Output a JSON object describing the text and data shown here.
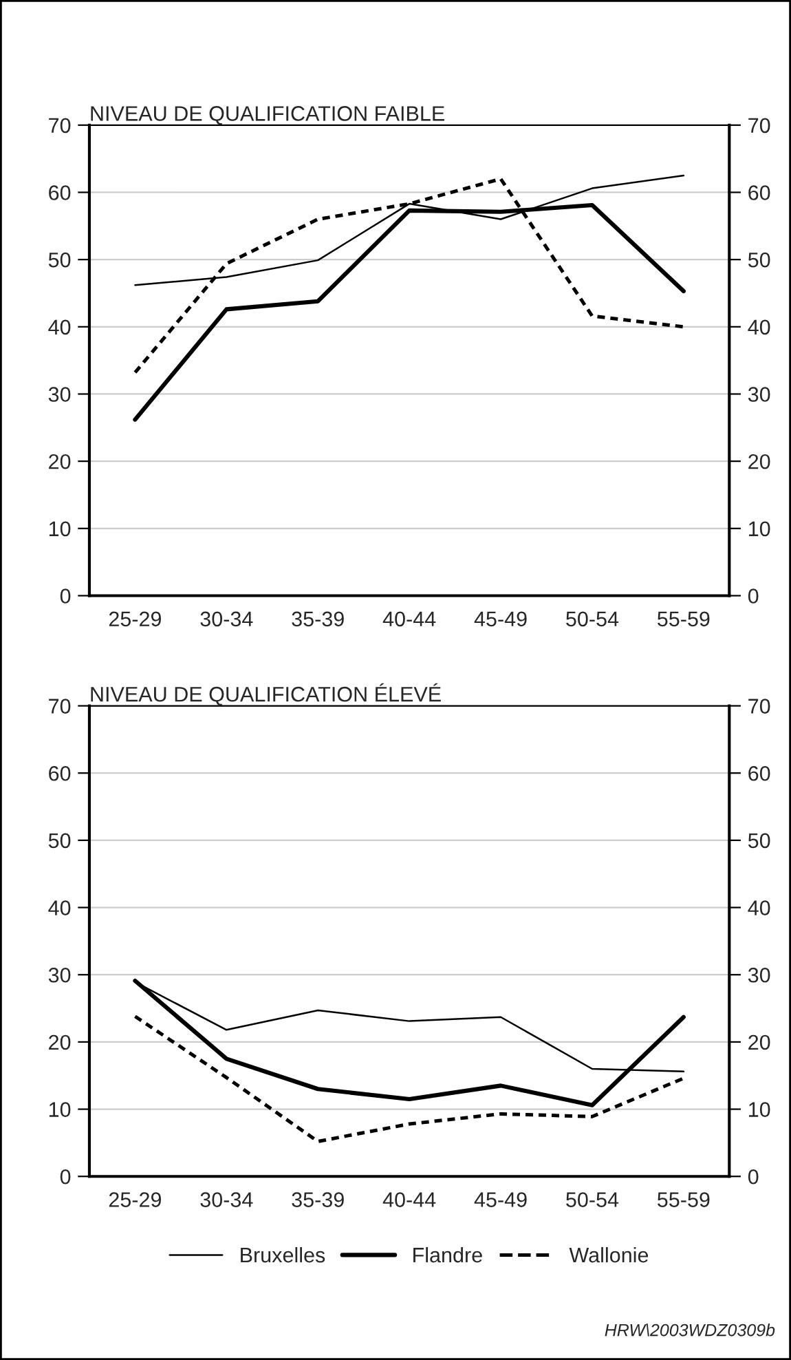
{
  "chart_data": [
    {
      "type": "line",
      "title": "NIVEAU DE QUALIFICATION FAIBLE",
      "categories": [
        "25-29",
        "30-34",
        "35-39",
        "40-44",
        "45-49",
        "50-54",
        "55-59"
      ],
      "series": [
        {
          "color": "#000000",
          "line_style": "solid",
          "values": [
            46.2,
            47.4,
            49.9,
            58.3,
            56.0,
            60.6,
            62.5
          ]
        },
        {
          "color": "#000000",
          "line_style": "solid",
          "values": [
            26.2,
            42.6,
            43.8,
            57.3,
            57.1,
            58.1,
            45.3
          ]
        },
        {
          "color": "#000000",
          "line_style": "dashed",
          "values": [
            33.2,
            49.4,
            56.0,
            58.3,
            62.0,
            41.6,
            40.0
          ]
        }
      ],
      "ylim": [
        0,
        70
      ],
      "yticks": [
        0,
        10,
        20,
        30,
        40,
        50,
        60,
        70
      ],
      "y2lim": [
        0,
        70
      ],
      "y2ticks": [
        0,
        10,
        20,
        30,
        40,
        50,
        60,
        70
      ],
      "grid": "y",
      "legend": false
    },
    {
      "type": "line",
      "title": "NIVEAU DE QUALIFICATION ÉLEVÉ",
      "categories": [
        "25-29",
        "30-34",
        "35-39",
        "40-44",
        "45-49",
        "50-54",
        "55-59"
      ],
      "series": [
        {
          "name": "Bruxelles",
          "color": "#000000",
          "line_style": "solid",
          "values": [
            28.9,
            21.8,
            24.7,
            23.1,
            23.7,
            16.0,
            15.6
          ]
        },
        {
          "name": "Flandre",
          "color": "#000000",
          "line_style": "solid",
          "values": [
            29.1,
            17.5,
            13.0,
            11.5,
            13.5,
            10.6,
            23.7
          ]
        },
        {
          "name": "Wallonie",
          "color": "#000000",
          "line_style": "dashed",
          "values": [
            23.8,
            14.7,
            5.2,
            7.8,
            9.3,
            8.9,
            14.6
          ]
        }
      ],
      "ylim": [
        0,
        70
      ],
      "yticks": [
        0,
        10,
        20,
        30,
        40,
        50,
        60,
        70
      ],
      "y2lim": [
        0,
        70
      ],
      "y2ticks": [
        0,
        10,
        20,
        30,
        40,
        50,
        60,
        70
      ],
      "grid": "y",
      "legend": "bottom",
      "annotations": [
        "HRW\\2003WDZ0309b"
      ]
    }
  ]
}
